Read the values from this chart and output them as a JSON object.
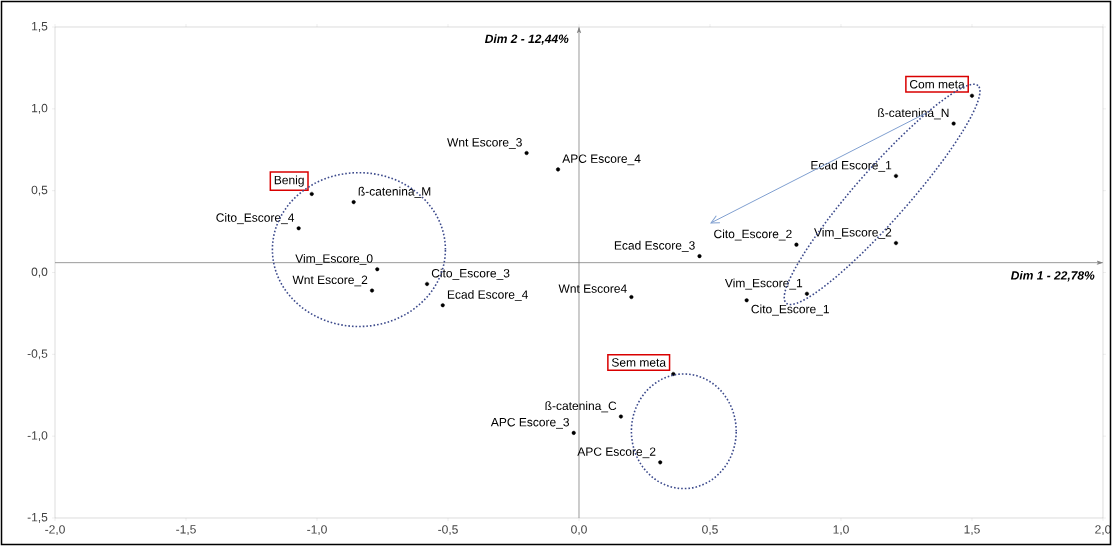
{
  "chart_data": {
    "type": "scatter",
    "xlabel": "Dim 1 - 22,78%",
    "ylabel": "Dim 2 - 12,44%",
    "xlim": [
      -2,
      2
    ],
    "ylim": [
      -1.5,
      1.5
    ],
    "xticks": [
      {
        "value": -2,
        "label": "-2,0"
      },
      {
        "value": -1.5,
        "label": "-1,5"
      },
      {
        "value": -1,
        "label": "-1,0"
      },
      {
        "value": -0.5,
        "label": "-0,5"
      },
      {
        "value": 0,
        "label": "0,0"
      },
      {
        "value": 0.5,
        "label": "0,5"
      },
      {
        "value": 1,
        "label": "1,0"
      },
      {
        "value": 1.5,
        "label": "1,5"
      },
      {
        "value": 2,
        "label": "2,0"
      }
    ],
    "yticks": [
      {
        "value": -1.5,
        "label": "-1,5"
      },
      {
        "value": -1,
        "label": "-1,0"
      },
      {
        "value": -0.5,
        "label": "-0,5"
      },
      {
        "value": 0,
        "label": "0,0"
      },
      {
        "value": 0.5,
        "label": "0,5"
      },
      {
        "value": 1,
        "label": "1,0"
      },
      {
        "value": 1.5,
        "label": "1,5"
      }
    ],
    "series": [
      {
        "name": "Com meta",
        "color": "#000000",
        "x": [
          1.5
        ],
        "values": [
          1.08
        ]
      },
      {
        "name": "Benig",
        "color": "#000000",
        "x": [
          -1.02
        ],
        "values": [
          0.48
        ]
      },
      {
        "name": "Sem meta",
        "color": "#000000",
        "x": [
          0.36
        ],
        "values": [
          -0.62
        ]
      },
      {
        "color": "#000000",
        "x": [
          1.43,
          1.21,
          1.21,
          0.83,
          0.46,
          0.87,
          0.64,
          0.2,
          0.16,
          -0.02,
          0.31,
          -0.2,
          -0.08,
          -0.86,
          -1.07,
          -0.77,
          -0.79,
          -0.58,
          -0.52
        ],
        "values": [
          0.91,
          0.59,
          0.18,
          0.17,
          0.1,
          -0.13,
          -0.17,
          -0.15,
          -0.88,
          -0.98,
          -1.16,
          0.73,
          0.63,
          0.43,
          0.27,
          0.02,
          -0.11,
          -0.07,
          -0.2
        ]
      }
    ],
    "ref_lines": [
      {
        "axis": "x",
        "value": 0,
        "color": "#808080"
      },
      {
        "axis": "y",
        "value": 0.06,
        "color": "#808080"
      }
    ],
    "annotations": [
      {
        "text": "ß-catenina_N",
        "x": 1.43,
        "y": 0.91
      },
      {
        "text": "Ecad Escore_1",
        "x": 1.21,
        "y": 0.59
      },
      {
        "text": "Vim_Escore_2",
        "x": 1.21,
        "y": 0.18
      },
      {
        "text": "Cito_Escore_2",
        "x": 0.83,
        "y": 0.17
      },
      {
        "text": "Ecad Escore_3",
        "x": 0.46,
        "y": 0.1
      },
      {
        "text": "Vim_Escore_1",
        "x": 0.87,
        "y": -0.13
      },
      {
        "text": "Cito_Escore_1",
        "x": 0.64,
        "y": -0.17
      },
      {
        "text": "Wnt Escore4",
        "x": 0.2,
        "y": -0.15
      },
      {
        "text": "ß-catenina_C",
        "x": 0.16,
        "y": -0.88
      },
      {
        "text": "APC Escore_3",
        "x": -0.02,
        "y": -0.98
      },
      {
        "text": "APC Escore_2",
        "x": 0.31,
        "y": -1.16
      },
      {
        "text": "Wnt Escore_3",
        "x": -0.2,
        "y": 0.73
      },
      {
        "text": "APC Escore_4",
        "x": -0.08,
        "y": 0.63
      },
      {
        "text": "ß-catenina_M",
        "x": -0.86,
        "y": 0.43
      },
      {
        "text": "Cito_Escore_4",
        "x": -1.07,
        "y": 0.27
      },
      {
        "text": "Vim_Escore_0",
        "x": -0.77,
        "y": 0.02
      },
      {
        "text": "Wnt Escore_2",
        "x": -0.79,
        "y": -0.11
      },
      {
        "text": "Cito_Escore_3",
        "x": -0.58,
        "y": -0.07
      },
      {
        "text": "Ecad Escore_4",
        "x": -0.52,
        "y": -0.2
      }
    ]
  }
}
